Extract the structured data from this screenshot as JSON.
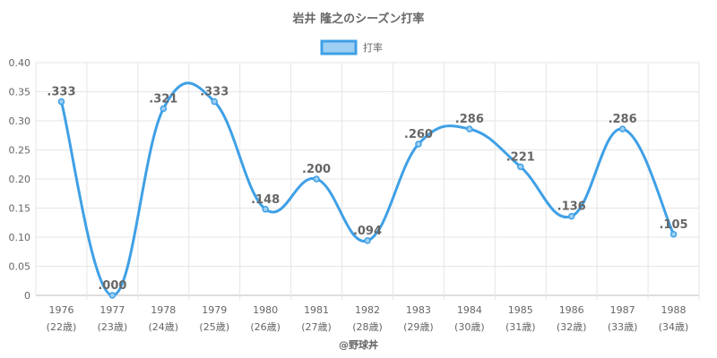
{
  "chart_data": {
    "type": "line",
    "title": "岩井 隆之のシーズン打率",
    "categories": [
      "1976",
      "1977",
      "1978",
      "1979",
      "1980",
      "1981",
      "1982",
      "1983",
      "1984",
      "1985",
      "1986",
      "1987",
      "1988"
    ],
    "category_sublabels": [
      "(22歳)",
      "(23歳)",
      "(24歳)",
      "(25歳)",
      "(26歳)",
      "(27歳)",
      "(28歳)",
      "(29歳)",
      "(30歳)",
      "(31歳)",
      "(32歳)",
      "(33歳)",
      "(34歳)"
    ],
    "series": [
      {
        "name": "打率",
        "values": [
          0.333,
          0.0,
          0.321,
          0.333,
          0.148,
          0.2,
          0.094,
          0.26,
          0.286,
          0.221,
          0.136,
          0.286,
          0.105
        ],
        "labels": [
          ".333",
          ".000",
          ".321",
          ".333",
          ".148",
          ".200",
          ".094",
          ".260",
          ".286",
          ".221",
          ".136",
          ".286",
          ".105"
        ]
      }
    ],
    "ylim": [
      0,
      0.4
    ],
    "yticks": [
      0,
      0.05,
      0.1,
      0.15,
      0.2,
      0.25,
      0.3,
      0.35,
      0.4
    ],
    "ytick_labels": [
      "0",
      "0.05",
      "0.10",
      "0.15",
      "0.20",
      "0.25",
      "0.30",
      "0.35",
      "0.40"
    ],
    "xlabel": "",
    "ylabel": "",
    "grid": true,
    "legend_position": "top-center",
    "colors": {
      "line": "#3fa0e6",
      "fill": "#9fd0f3",
      "text": "#666666",
      "grid": "#e6e6e6"
    }
  },
  "credit": "@野球丼"
}
